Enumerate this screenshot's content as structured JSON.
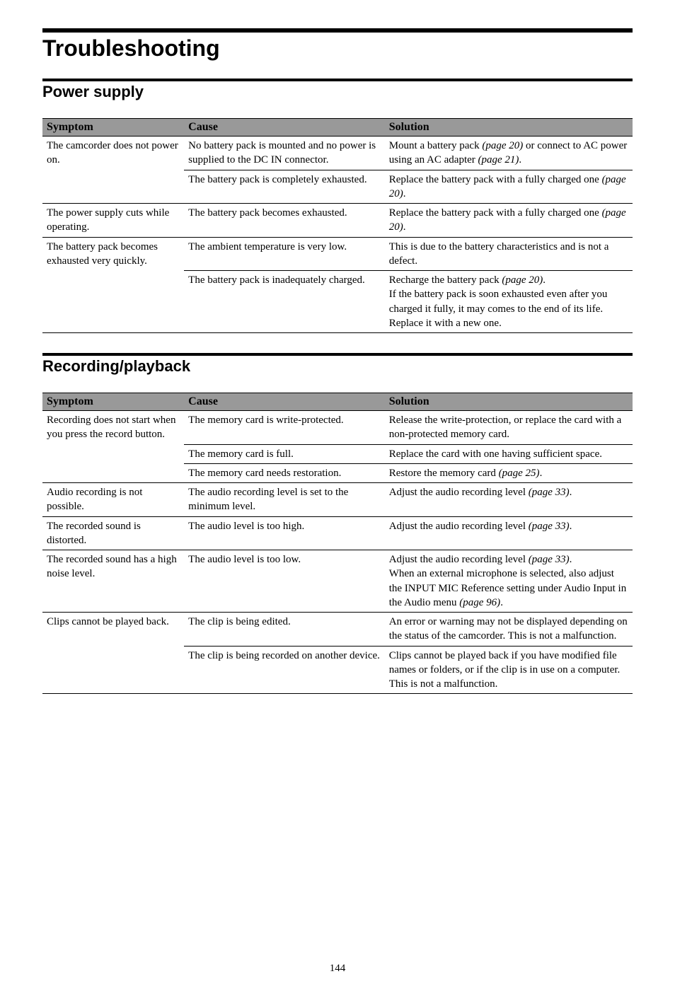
{
  "page": {
    "title": "Troubleshooting",
    "number": "144"
  },
  "sections": [
    {
      "header": "Power supply",
      "table": {
        "headers": [
          "Symptom",
          "Cause",
          "Solution"
        ],
        "groups": [
          {
            "symptom": "The camcorder does not power on.",
            "rows": [
              {
                "cause": "No battery pack is mounted and no power is supplied to the DC IN connector.",
                "solution_parts": [
                  {
                    "t": "Mount a battery pack "
                  },
                  {
                    "t": "(page 20)",
                    "i": true
                  },
                  {
                    "t": " or connect to AC power using an AC adapter "
                  },
                  {
                    "t": "(page 21)",
                    "i": true
                  },
                  {
                    "t": "."
                  }
                ]
              },
              {
                "cause": "The battery pack is completely exhausted.",
                "solution_parts": [
                  {
                    "t": "Replace the battery pack with a fully charged one "
                  },
                  {
                    "t": "(page 20)",
                    "i": true
                  },
                  {
                    "t": "."
                  }
                ]
              }
            ]
          },
          {
            "symptom": "The power supply cuts while operating.",
            "rows": [
              {
                "cause": "The battery pack becomes exhausted.",
                "solution_parts": [
                  {
                    "t": "Replace the battery pack with a fully charged one "
                  },
                  {
                    "t": "(page 20)",
                    "i": true
                  },
                  {
                    "t": "."
                  }
                ]
              }
            ]
          },
          {
            "symptom": "The battery pack becomes exhausted very quickly.",
            "rows": [
              {
                "cause": "The ambient temperature is very low.",
                "solution_parts": [
                  {
                    "t": "This is due to the battery characteristics and is not a defect."
                  }
                ]
              },
              {
                "cause": "The battery pack is inadequately charged.",
                "solution_parts": [
                  {
                    "t": "Recharge the battery pack "
                  },
                  {
                    "t": "(page 20)",
                    "i": true
                  },
                  {
                    "t": "."
                  },
                  {
                    "br": true
                  },
                  {
                    "t": "If the battery pack is soon exhausted even after you charged it fully, it may comes to the end of its life. Replace it with a new one."
                  }
                ]
              }
            ]
          }
        ]
      }
    },
    {
      "header": "Recording/playback",
      "table": {
        "headers": [
          "Symptom",
          "Cause",
          "Solution"
        ],
        "groups": [
          {
            "symptom": "Recording does not start when you press the record button.",
            "rows": [
              {
                "cause": "The memory card is write-protected.",
                "solution_parts": [
                  {
                    "t": "Release the write-protection, or replace the card with a non-protected memory card."
                  }
                ]
              },
              {
                "cause": "The memory card is full.",
                "solution_parts": [
                  {
                    "t": "Replace the card with one having sufficient space."
                  }
                ]
              },
              {
                "cause": "The memory card needs restoration.",
                "solution_parts": [
                  {
                    "t": "Restore the memory card "
                  },
                  {
                    "t": "(page 25)",
                    "i": true
                  },
                  {
                    "t": "."
                  }
                ]
              }
            ]
          },
          {
            "symptom": "Audio recording is not possible.",
            "rows": [
              {
                "cause": "The audio recording level is set to the minimum level.",
                "solution_parts": [
                  {
                    "t": "Adjust the audio recording level "
                  },
                  {
                    "t": "(page 33)",
                    "i": true
                  },
                  {
                    "t": "."
                  }
                ]
              }
            ]
          },
          {
            "symptom": "The recorded sound is distorted.",
            "rows": [
              {
                "cause": "The audio level is too high.",
                "solution_parts": [
                  {
                    "t": "Adjust the audio recording level "
                  },
                  {
                    "t": "(page 33)",
                    "i": true
                  },
                  {
                    "t": "."
                  }
                ]
              }
            ]
          },
          {
            "symptom": "The recorded sound has a high noise level.",
            "rows": [
              {
                "cause": "The audio level is too low.",
                "solution_parts": [
                  {
                    "t": "Adjust the audio recording level "
                  },
                  {
                    "t": "(page 33)",
                    "i": true
                  },
                  {
                    "t": "."
                  },
                  {
                    "br": true
                  },
                  {
                    "t": "When an external microphone is selected, also adjust the INPUT MIC Reference setting under Audio Input in the Audio menu "
                  },
                  {
                    "t": "(page 96)",
                    "i": true
                  },
                  {
                    "t": "."
                  }
                ]
              }
            ]
          },
          {
            "symptom": "Clips cannot be played back.",
            "rows": [
              {
                "cause": "The clip is being edited.",
                "solution_parts": [
                  {
                    "t": "An error or warning may not be displayed depending on the status of the camcorder. This is not a malfunction."
                  }
                ]
              },
              {
                "cause": "The clip is being recorded on another device.",
                "solution_parts": [
                  {
                    "t": "Clips cannot be played back if you have modified file names or folders, or if the clip is in use on a computer. This is not a malfunction."
                  }
                ]
              }
            ]
          }
        ]
      }
    }
  ]
}
